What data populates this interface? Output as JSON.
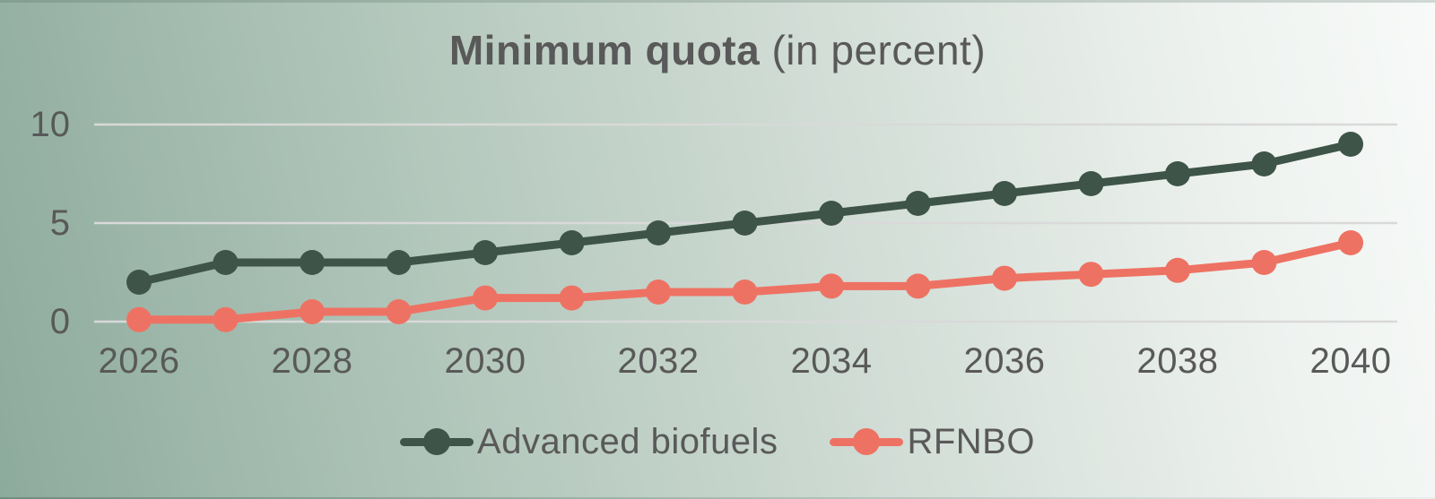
{
  "title": {
    "bold": "Minimum quota",
    "regular": "(in percent)"
  },
  "colors": {
    "background_left": "#8dab9d",
    "background_mid": "#b7cabf",
    "background_right": "#f7faf8",
    "gridline": "#d9d9d9",
    "text": "#595959",
    "advanced_biofuels": "#3e5449",
    "rfnbo": "#ee7263"
  },
  "chart_data": {
    "type": "line",
    "title": "Minimum quota (in percent)",
    "xlabel": "",
    "ylabel": "",
    "x": [
      2026,
      2027,
      2028,
      2029,
      2030,
      2031,
      2032,
      2033,
      2034,
      2035,
      2036,
      2037,
      2038,
      2039,
      2040
    ],
    "series": [
      {
        "name": "Advanced biofuels",
        "color": "#3e5449",
        "values": [
          2,
          3,
          3,
          3,
          3.5,
          4,
          4.5,
          5,
          5.5,
          6,
          6.5,
          7,
          7.5,
          8,
          9
        ]
      },
      {
        "name": "RFNBO",
        "color": "#ee7263",
        "values": [
          0.1,
          0.1,
          0.5,
          0.5,
          1.2,
          1.2,
          1.5,
          1.5,
          1.8,
          1.8,
          2.2,
          2.4,
          2.6,
          3,
          4
        ]
      }
    ],
    "xticks": [
      2026,
      2028,
      2030,
      2032,
      2034,
      2036,
      2038,
      2040
    ],
    "yticks": [
      0,
      5,
      10
    ],
    "ylim": [
      0,
      10
    ],
    "grid": true,
    "marker": "circle",
    "legend_position": "bottom"
  }
}
